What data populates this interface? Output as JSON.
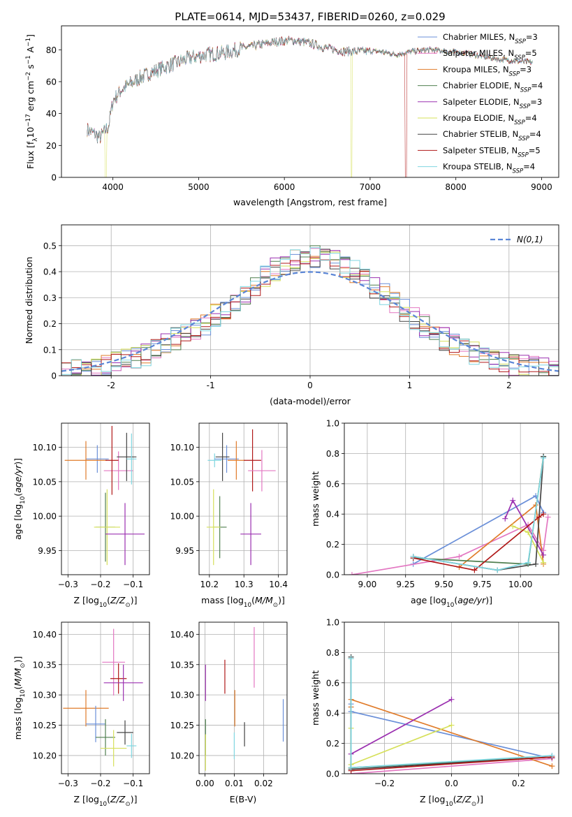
{
  "figure_title": "PLATE=0614, MJD=53437, FIBERID=0260, z=0.029",
  "colors": {
    "chabrier_miles": "#6a8fd8",
    "salpeter_miles": "#e377c2",
    "kroupa_miles": "#e07b2a",
    "chabrier_elodie": "#4f7f4f",
    "salpeter_elodie": "#9b30b0",
    "kroupa_elodie": "#d6e05a",
    "chabrier_stelib": "#444444",
    "salpeter_stelib": "#b01818",
    "kroupa_stelib": "#7fd6e0"
  },
  "chart_data": [
    {
      "id": "spectrum",
      "type": "line",
      "xlabel": "wavelength [Angstrom, rest frame]",
      "ylabel": "Flux [f_λ 10^-17 erg cm^-2 s^-1 A^-1]",
      "xlim": [
        3400,
        9200
      ],
      "ylim": [
        0,
        95
      ],
      "xticks": [
        4000,
        5000,
        6000,
        7000,
        8000,
        9000
      ],
      "yticks": [
        0,
        20,
        40,
        60,
        80
      ],
      "legend_position": "top-right",
      "legend": [
        "Chabrier MILES, N_SSP=3",
        "Salpeter MILES, N_SSP=5",
        "Kroupa MILES, N_SSP=3",
        "Chabrier ELODIE, N_SSP=4",
        "Salpeter ELODIE, N_SSP=3",
        "Kroupa ELODIE, N_SSP=4",
        "Chabrier STELIB, N_SSP=4",
        "Salpeter STELIB, N_SSP=5",
        "Kroupa STELIB, N_SSP=4"
      ],
      "continuum": {
        "x": [
          3700,
          3850,
          3950,
          4000,
          4100,
          4300,
          4500,
          4700,
          4900,
          5100,
          5300,
          5500,
          5700,
          5900,
          6100,
          6300,
          6500,
          6700,
          6900,
          7100,
          7300,
          7500,
          7700,
          7900,
          8100,
          8300,
          8500,
          8700,
          8900
        ],
        "y": [
          30,
          25,
          32,
          48,
          55,
          62,
          67,
          71,
          75,
          77,
          78,
          81,
          83,
          85,
          86,
          84,
          81,
          79,
          79,
          79,
          77,
          79,
          80,
          79,
          78,
          76,
          74,
          73,
          72
        ]
      },
      "drops": [
        {
          "series": "kroupa_elodie",
          "x_from": 3905,
          "x_to": 3930
        },
        {
          "series": "kroupa_elodie",
          "x_from": 6780,
          "x_to": 6790
        },
        {
          "series": "salpeter_stelib",
          "x_from": 7410,
          "x_to": 7430
        }
      ]
    },
    {
      "id": "residuals",
      "type": "histogram",
      "xlabel": "(data-model)/error",
      "ylabel": "Normed distribution",
      "xlim": [
        -2.5,
        2.5
      ],
      "ylim": [
        0,
        0.58
      ],
      "xticks": [
        -2,
        -1,
        0,
        1,
        2
      ],
      "yticks": [
        0.0,
        0.1,
        0.2,
        0.3,
        0.4,
        0.5
      ],
      "grid": true,
      "legend_position": "top-right",
      "reference_curve": "N(0,1)",
      "bin_edges_start": -2.5,
      "bin_width": 0.1,
      "bins": 50,
      "hist_base": [
        0.02,
        0.025,
        0.03,
        0.035,
        0.04,
        0.05,
        0.06,
        0.07,
        0.08,
        0.1,
        0.12,
        0.14,
        0.16,
        0.18,
        0.2,
        0.23,
        0.26,
        0.29,
        0.32,
        0.35,
        0.38,
        0.41,
        0.43,
        0.45,
        0.47,
        0.46,
        0.45,
        0.44,
        0.42,
        0.4,
        0.37,
        0.34,
        0.31,
        0.28,
        0.25,
        0.22,
        0.19,
        0.16,
        0.14,
        0.12,
        0.1,
        0.085,
        0.07,
        0.06,
        0.05,
        0.04,
        0.035,
        0.03,
        0.025,
        0.02
      ]
    },
    {
      "id": "age_vs_Z",
      "type": "errorbar",
      "xlabel": "Z [log10(Z/Z⊙)]",
      "ylabel": "age [log10(age/yr)]",
      "xlim": [
        -0.32,
        -0.05
      ],
      "ylim": [
        9.915,
        10.135
      ],
      "xticks": [
        -0.3,
        -0.2,
        -0.1
      ],
      "xticklabels": [
        "−0.3",
        "−0.2",
        "−0.1"
      ],
      "yticks": [
        9.95,
        10.0,
        10.05,
        10.1
      ],
      "yticklabels": [
        "9.95",
        "10.00",
        "10.05",
        "10.10"
      ],
      "grid": true,
      "points": [
        {
          "s": "chabrier_miles",
          "x": -0.21,
          "y": 10.083,
          "xe": 0.035,
          "ye": 0.02
        },
        {
          "s": "kroupa_miles",
          "x": -0.245,
          "y": 10.081,
          "xe": 0.065,
          "ye": 0.028
        },
        {
          "s": "salpeter_miles",
          "x": -0.145,
          "y": 10.066,
          "xe": 0.045,
          "ye": 0.028
        },
        {
          "s": "salpeter_stelib",
          "x": -0.165,
          "y": 10.081,
          "xe": 0.02,
          "ye": 0.05
        },
        {
          "s": "chabrier_stelib",
          "x": -0.12,
          "y": 10.086,
          "xe": 0.03,
          "ye": 0.035
        },
        {
          "s": "kroupa_stelib",
          "x": -0.105,
          "y": 10.083,
          "xe": 0.015,
          "ye": 0.037
        },
        {
          "s": "chabrier_elodie",
          "x": -0.185,
          "y": 9.984,
          "xe": 0.03,
          "ye": 0.05
        },
        {
          "s": "kroupa_elodie",
          "x": -0.18,
          "y": 9.984,
          "xe": 0.04,
          "ye": 0.055
        },
        {
          "s": "salpeter_elodie",
          "x": -0.125,
          "y": 9.974,
          "xe": 0.06,
          "ye": 0.045
        }
      ]
    },
    {
      "id": "age_vs_mass",
      "type": "errorbar",
      "xlabel": "mass [log10(M/M⊙)]",
      "xlim": [
        10.17,
        10.425
      ],
      "ylim": [
        9.915,
        10.135
      ],
      "xticks": [
        10.2,
        10.3,
        10.4
      ],
      "xticklabels": [
        "10.2",
        "10.3",
        "10.4"
      ],
      "yticks": [
        9.95,
        10.0,
        10.05,
        10.1
      ],
      "yticklabels": [
        "9.95",
        "10.00",
        "10.05",
        "10.10"
      ],
      "grid": true,
      "points": [
        {
          "s": "kroupa_stelib",
          "x": 10.215,
          "y": 10.081,
          "xe": 0.02,
          "ye": 0.01
        },
        {
          "s": "chabrier_miles",
          "x": 10.25,
          "y": 10.083,
          "xe": 0.035,
          "ye": 0.02
        },
        {
          "s": "kroupa_miles",
          "x": 10.278,
          "y": 10.081,
          "xe": 0.025,
          "ye": 0.028
        },
        {
          "s": "chabrier_stelib",
          "x": 10.238,
          "y": 10.086,
          "xe": 0.02,
          "ye": 0.035
        },
        {
          "s": "salpeter_stelib",
          "x": 10.325,
          "y": 10.081,
          "xe": 0.025,
          "ye": 0.045
        },
        {
          "s": "salpeter_miles",
          "x": 10.352,
          "y": 10.066,
          "xe": 0.04,
          "ye": 0.03
        },
        {
          "s": "chabrier_elodie",
          "x": 10.23,
          "y": 9.984,
          "xe": 0.02,
          "ye": 0.045
        },
        {
          "s": "kroupa_elodie",
          "x": 10.212,
          "y": 9.984,
          "xe": 0.02,
          "ye": 0.055
        },
        {
          "s": "salpeter_elodie",
          "x": 10.32,
          "y": 9.974,
          "xe": 0.03,
          "ye": 0.045
        }
      ]
    },
    {
      "id": "weight_vs_age",
      "type": "line",
      "xlabel": "age [log10(age/yr)]",
      "ylabel": "mass weight",
      "xlim": [
        8.85,
        10.25
      ],
      "ylim": [
        0,
        1.0
      ],
      "xticks": [
        9.0,
        9.25,
        9.5,
        9.75,
        10.0
      ],
      "xticklabels": [
        "9.00",
        "9.25",
        "9.50",
        "9.75",
        "10.00"
      ],
      "yticks": [
        0.0,
        0.2,
        0.4,
        0.6,
        0.8,
        1.0
      ],
      "yticklabels": [
        "0.0",
        "0.2",
        "0.4",
        "0.6",
        "0.8",
        "1.0"
      ],
      "grid": true,
      "series": [
        {
          "s": "chabrier_miles",
          "x": [
            9.3,
            10.1,
            10.15
          ],
          "y": [
            0.07,
            0.52,
            0.41
          ]
        },
        {
          "s": "salpeter_miles",
          "x": [
            8.9,
            9.6,
            10.05,
            10.15,
            10.18
          ],
          "y": [
            0.0,
            0.12,
            0.33,
            0.16,
            0.38
          ]
        },
        {
          "s": "kroupa_miles",
          "x": [
            9.6,
            10.1,
            10.15
          ],
          "y": [
            0.05,
            0.46,
            0.07
          ]
        },
        {
          "s": "chabrier_elodie",
          "x": [
            9.3,
            10.05,
            10.15
          ],
          "y": [
            0.11,
            0.07,
            0.78
          ]
        },
        {
          "s": "salpeter_elodie",
          "x": [
            9.9,
            9.95,
            10.15
          ],
          "y": [
            0.37,
            0.49,
            0.13
          ]
        },
        {
          "s": "kroupa_elodie",
          "x": [
            9.95,
            10.05,
            10.15
          ],
          "y": [
            0.32,
            0.28,
            0.08
          ]
        },
        {
          "s": "chabrier_stelib",
          "x": [
            9.3,
            9.85,
            10.1,
            10.15
          ],
          "y": [
            0.12,
            0.03,
            0.07,
            0.78
          ]
        },
        {
          "s": "salpeter_stelib",
          "x": [
            9.3,
            9.7,
            10.12,
            10.15
          ],
          "y": [
            0.11,
            0.03,
            0.38,
            0.4
          ]
        },
        {
          "s": "kroupa_stelib",
          "x": [
            9.3,
            9.85,
            10.05,
            10.15
          ],
          "y": [
            0.12,
            0.03,
            0.08,
            0.77
          ]
        }
      ]
    },
    {
      "id": "mass_vs_Z",
      "type": "errorbar",
      "xlabel": "Z [log10(Z/Z⊙)]",
      "ylabel": "mass [log10(M/M⊙)]",
      "xlim": [
        -0.32,
        -0.05
      ],
      "ylim": [
        10.17,
        10.42
      ],
      "xticks": [
        -0.3,
        -0.2,
        -0.1
      ],
      "xticklabels": [
        "−0.3",
        "−0.2",
        "−0.1"
      ],
      "yticks": [
        10.2,
        10.25,
        10.3,
        10.35,
        10.4
      ],
      "yticklabels": [
        "10.20",
        "10.25",
        "10.30",
        "10.35",
        "10.40"
      ],
      "grid": true,
      "points": [
        {
          "s": "salpeter_miles",
          "x": -0.16,
          "y": 10.354,
          "xe": 0.035,
          "ye": 0.055
        },
        {
          "s": "salpeter_stelib",
          "x": -0.145,
          "y": 10.327,
          "xe": 0.025,
          "ye": 0.025
        },
        {
          "s": "salpeter_elodie",
          "x": -0.13,
          "y": 10.32,
          "xe": 0.06,
          "ye": 0.03
        },
        {
          "s": "kroupa_miles",
          "x": -0.245,
          "y": 10.278,
          "xe": 0.07,
          "ye": 0.03
        },
        {
          "s": "chabrier_miles",
          "x": -0.215,
          "y": 10.252,
          "xe": 0.03,
          "ye": 0.03
        },
        {
          "s": "chabrier_stelib",
          "x": -0.125,
          "y": 10.238,
          "xe": 0.025,
          "ye": 0.02
        },
        {
          "s": "chabrier_elodie",
          "x": -0.185,
          "y": 10.23,
          "xe": 0.03,
          "ye": 0.03
        },
        {
          "s": "kroupa_stelib",
          "x": -0.105,
          "y": 10.216,
          "xe": 0.015,
          "ye": 0.02
        },
        {
          "s": "kroupa_elodie",
          "x": -0.16,
          "y": 10.212,
          "xe": 0.04,
          "ye": 0.03
        }
      ]
    },
    {
      "id": "mass_vs_ebv",
      "type": "errorbar",
      "xlabel": "E(B-V)",
      "xlim": [
        -0.002,
        0.028
      ],
      "ylim": [
        10.17,
        10.42
      ],
      "xticks": [
        0.0,
        0.01,
        0.02
      ],
      "xticklabels": [
        "0.00",
        "0.01",
        "0.02"
      ],
      "yticks": [
        10.2,
        10.25,
        10.3,
        10.35,
        10.4
      ],
      "yticklabels": [
        "10.20",
        "10.25",
        "10.30",
        "10.35",
        "10.40"
      ],
      "grid": true,
      "points": [
        {
          "s": "salpeter_elodie",
          "x": 0.0002,
          "y": 10.32,
          "xe": 0,
          "ye": 0.03
        },
        {
          "s": "chabrier_elodie",
          "x": 0.0002,
          "y": 10.23,
          "xe": 0,
          "ye": 0.03
        },
        {
          "s": "kroupa_elodie",
          "x": 0.0002,
          "y": 10.205,
          "xe": 0,
          "ye": 0.03
        },
        {
          "s": "salpeter_stelib",
          "x": 0.0068,
          "y": 10.33,
          "xe": 0,
          "ye": 0.028
        },
        {
          "s": "kroupa_miles",
          "x": 0.0102,
          "y": 10.278,
          "xe": 0,
          "ye": 0.03
        },
        {
          "s": "kroupa_stelib",
          "x": 0.01,
          "y": 10.216,
          "xe": 0,
          "ye": 0.022
        },
        {
          "s": "chabrier_stelib",
          "x": 0.0135,
          "y": 10.235,
          "xe": 0,
          "ye": 0.02
        },
        {
          "s": "salpeter_miles",
          "x": 0.0168,
          "y": 10.362,
          "xe": 0,
          "ye": 0.05
        },
        {
          "s": "chabrier_miles",
          "x": 0.0267,
          "y": 10.258,
          "xe": 0,
          "ye": 0.035
        }
      ]
    },
    {
      "id": "weight_vs_Z",
      "type": "line",
      "xlabel": "Z [log10(Z/Z⊙)]",
      "ylabel": "mass weight",
      "xlim": [
        -0.32,
        0.32
      ],
      "ylim": [
        0,
        1.0
      ],
      "xticks": [
        -0.2,
        0.0,
        0.2
      ],
      "xticklabels": [
        "−0.2",
        "0.0",
        "0.2"
      ],
      "yticks": [
        0.0,
        0.2,
        0.4,
        0.6,
        0.8,
        1.0
      ],
      "yticklabels": [
        "0.0",
        "0.2",
        "0.4",
        "0.6",
        "0.8",
        "1.0"
      ],
      "grid": true,
      "series": [
        {
          "s": "chabrier_miles",
          "x": [
            -0.3,
            -0.3,
            0.3
          ],
          "y": [
            0.46,
            0.41,
            0.1
          ]
        },
        {
          "s": "salpeter_miles",
          "x": [
            -0.3,
            0.3,
            0.3
          ],
          "y": [
            0.0,
            0.1,
            0.12
          ]
        },
        {
          "s": "kroupa_miles",
          "x": [
            -0.3,
            -0.3,
            0.3
          ],
          "y": [
            0.44,
            0.49,
            0.05
          ]
        },
        {
          "s": "chabrier_elodie",
          "x": [
            -0.3,
            -0.3,
            0.3
          ],
          "y": [
            0.76,
            0.04,
            0.11
          ]
        },
        {
          "s": "salpeter_elodie",
          "x": [
            -0.3,
            0.0
          ],
          "y": [
            0.13,
            0.49
          ]
        },
        {
          "s": "kroupa_elodie",
          "x": [
            -0.3,
            -0.3,
            0.0
          ],
          "y": [
            0.3,
            0.06,
            0.32
          ]
        },
        {
          "s": "chabrier_stelib",
          "x": [
            -0.3,
            -0.3,
            0.3
          ],
          "y": [
            0.77,
            0.03,
            0.11
          ]
        },
        {
          "s": "salpeter_stelib",
          "x": [
            -0.3,
            0.3
          ],
          "y": [
            0.02,
            0.11
          ]
        },
        {
          "s": "kroupa_stelib",
          "x": [
            -0.3,
            -0.3,
            0.3
          ],
          "y": [
            0.76,
            0.04,
            0.12
          ]
        }
      ]
    }
  ]
}
